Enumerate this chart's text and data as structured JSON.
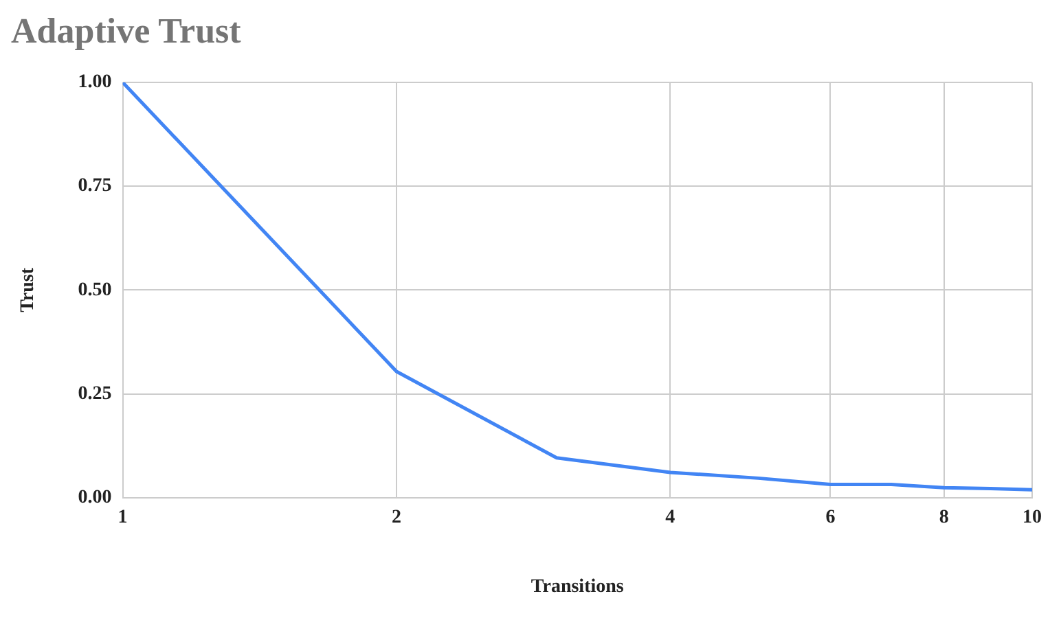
{
  "chart_data": {
    "type": "line",
    "title": "Adaptive Trust",
    "xlabel": "Transitions",
    "ylabel": "Trust",
    "log": "x",
    "x": [
      1,
      2,
      3,
      4,
      5,
      6,
      7,
      8,
      9,
      10
    ],
    "series": [
      {
        "color": "#4285f4",
        "values": [
          1.0,
          0.304,
          0.096,
          0.061,
          0.047,
          0.032,
          0.032,
          0.024,
          0.022,
          0.019
        ]
      }
    ],
    "xlim": [
      1,
      10
    ],
    "xticks": [
      1,
      2,
      4,
      6,
      8,
      10
    ],
    "ylim": [
      0,
      1
    ],
    "yticks": [
      {
        "value": 0,
        "label": "0.00"
      },
      {
        "value": 0.25,
        "label": "0.25"
      },
      {
        "value": 0.5,
        "label": "0.50"
      },
      {
        "value": 0.75,
        "label": "0.75"
      },
      {
        "value": 1,
        "label": "1.00"
      }
    ],
    "grid": true,
    "legend": false,
    "marker": "none",
    "line_style": "solid"
  }
}
